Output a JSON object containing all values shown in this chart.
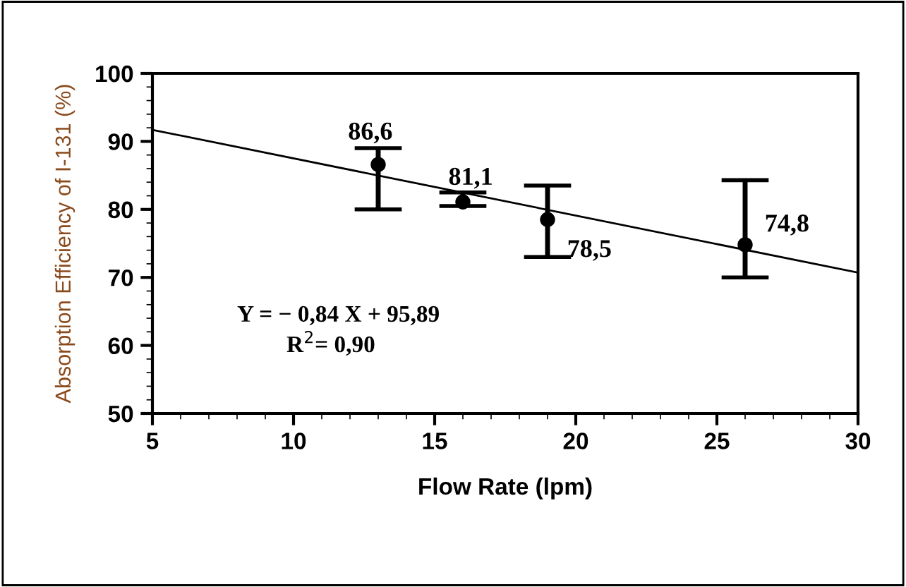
{
  "chart_data": {
    "type": "scatter",
    "xlabel": "Flow Rate (lpm)",
    "ylabel": "Absorption Efficiency of I-131 (%)",
    "xlim": [
      5,
      30
    ],
    "xticks": [
      5,
      10,
      15,
      20,
      25,
      30
    ],
    "ylim": [
      50,
      100
    ],
    "yticks": [
      50,
      60,
      70,
      80,
      90,
      100
    ],
    "grid": false,
    "legend": false,
    "marker": "circle",
    "series": [
      {
        "color": "#000000",
        "x": [
          13,
          16,
          19,
          26
        ],
        "values": [
          86.6,
          81.1,
          78.5,
          74.8
        ],
        "errors": [
          [
            80,
            89
          ],
          [
            80.5,
            82.5
          ],
          [
            73,
            83.5
          ],
          [
            70,
            84.3
          ]
        ],
        "value_labels": [
          "86,6",
          "81,1",
          "78,5",
          "74,8"
        ]
      },
      {
        "type": "line",
        "color": "#000000",
        "x": [
          5,
          30
        ],
        "values": [
          91.7,
          70.7
        ],
        "marker": "none",
        "line_style": "solid"
      }
    ],
    "annotations": [
      "Y = − 0,84 X + 95,89",
      "R$^{2}$= 0,90"
    ]
  }
}
